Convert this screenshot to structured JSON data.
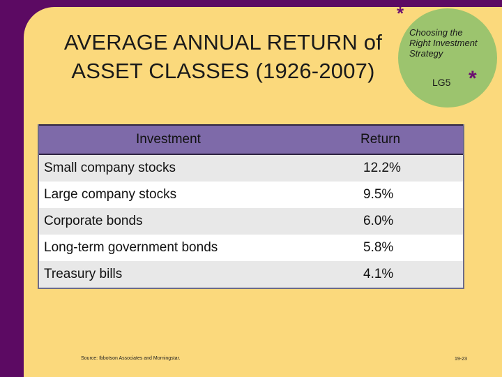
{
  "slide": {
    "title_line1": "AVERAGE ANNUAL RETURN of",
    "title_line2": "ASSET CLASSES (1926-2007)",
    "badge": {
      "text_line1": "Choosing the",
      "text_line2": "Right Investment",
      "text_line3": "Strategy",
      "code": "LG5",
      "color": "#9cc46e"
    },
    "star_symbol": "*",
    "source": "Source: Ibbotson Associates and Morningstar.",
    "page_number": "19-23"
  },
  "table": {
    "headers": {
      "investment": "Investment",
      "return": "Return"
    },
    "rows": [
      {
        "investment": "Small company stocks",
        "return": "12.2%"
      },
      {
        "investment": "Large company stocks",
        "return": "9.5%"
      },
      {
        "investment": "Corporate bonds",
        "return": "6.0%"
      },
      {
        "investment": "Long-term government bonds",
        "return": "5.8%"
      },
      {
        "investment": "Treasury bills",
        "return": "4.1%"
      }
    ]
  },
  "colors": {
    "background": "#5c0a63",
    "panel": "#fbd97c",
    "header": "#7e6aa9"
  }
}
